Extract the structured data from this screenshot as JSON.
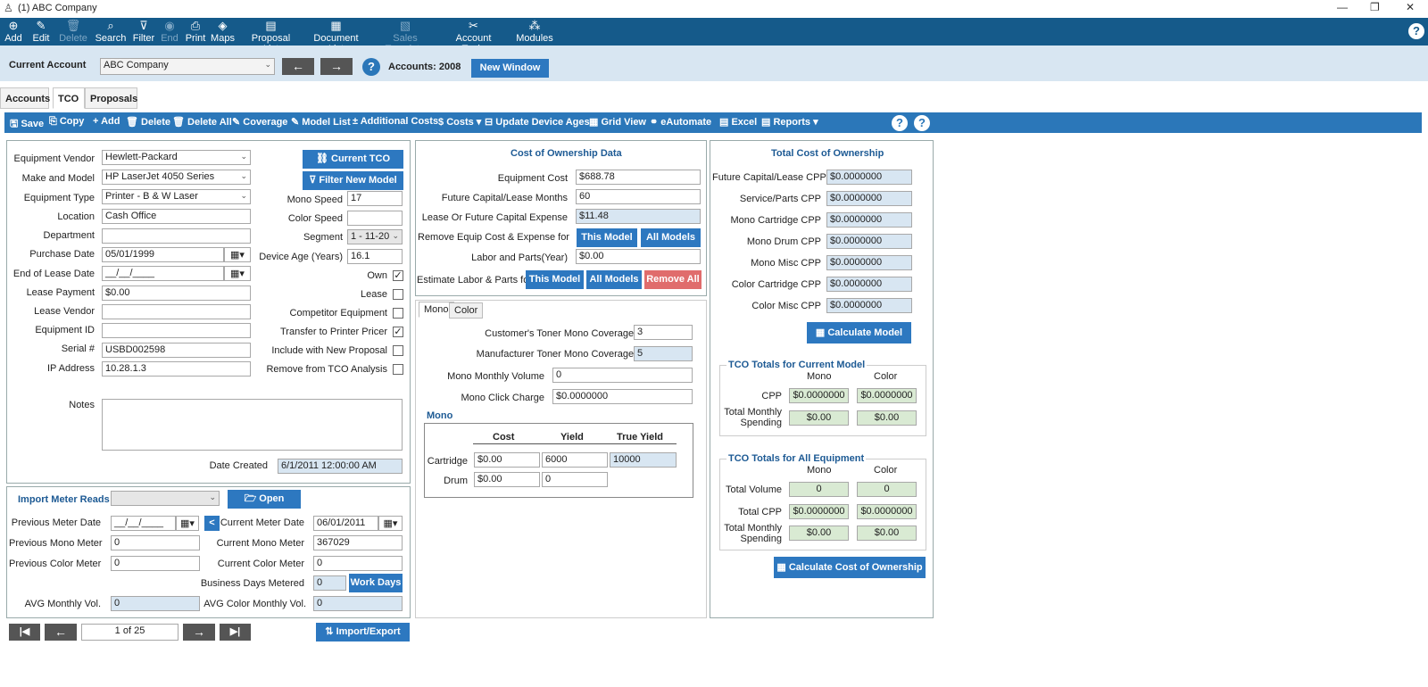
{
  "window": {
    "title": "(1) ABC Company",
    "minimize": "—",
    "restore": "❐",
    "close": "✕"
  },
  "toolbar": [
    {
      "label": "Add",
      "icon": "⊕",
      "disabled": false
    },
    {
      "label": "Edit",
      "icon": "✎",
      "disabled": false
    },
    {
      "label": "Delete",
      "icon": "🗑",
      "disabled": true
    },
    {
      "label": "Search",
      "icon": "⌕",
      "disabled": false
    },
    {
      "label": "Filter",
      "icon": "⊽",
      "disabled": false
    },
    {
      "label": "End",
      "icon": "◉",
      "disabled": true
    },
    {
      "label": "Print",
      "icon": "⎙",
      "disabled": false
    },
    {
      "label": "Maps",
      "icon": "◈",
      "disabled": false
    },
    {
      "label": "Proposal List",
      "icon": "▤",
      "disabled": false
    },
    {
      "label": "Document List",
      "icon": "▦",
      "disabled": false
    },
    {
      "label": "Sales Template",
      "icon": "▧",
      "disabled": true
    },
    {
      "label": "Account Tools",
      "icon": "✂",
      "disabled": false
    },
    {
      "label": "Modules",
      "icon": "⁂",
      "disabled": false
    }
  ],
  "help": "?",
  "account": {
    "label": "Current Account",
    "value": "ABC Company",
    "accounts": "Accounts: 2008",
    "new_window": "New Window",
    "prev": "←",
    "next": "→"
  },
  "tabs": [
    "Accounts",
    "TCO",
    "Proposals"
  ],
  "actions": [
    "Save",
    "Copy",
    "Add",
    "Delete",
    "Delete All",
    "Coverage",
    "Model List",
    "Additional Costs",
    "Costs",
    "Update Device Ages",
    "Grid View",
    "eAutomate",
    "Excel",
    "Reports"
  ],
  "equipment": {
    "vendor_label": "Equipment Vendor",
    "vendor": "Hewlett-Packard",
    "model_label": "Make and Model",
    "model": "HP LaserJet 4050 Series",
    "type_label": "Equipment Type",
    "type": "Printer - B & W Laser",
    "location_label": "Location",
    "location": "Cash Office",
    "department_label": "Department",
    "department": "",
    "purchase_label": "Purchase Date",
    "purchase": "05/01/1999",
    "lease_end_label": "End of Lease Date",
    "lease_end": "__/__/____",
    "lease_payment_label": "Lease Payment",
    "lease_payment": "$0.00",
    "lease_vendor_label": "Lease Vendor",
    "lease_vendor": "",
    "equip_id_label": "Equipment ID",
    "equip_id": "",
    "serial_label": "Serial #",
    "serial": "USBD002598",
    "ip_label": "IP Address",
    "ip": "10.28.1.3",
    "current_tco": "Current TCO",
    "filter_new": "Filter New Model",
    "mono_speed_label": "Mono Speed",
    "mono_speed": "17",
    "color_speed_label": "Color Speed",
    "color_speed": "",
    "segment_label": "Segment",
    "segment": "1 - 11-20",
    "age_label": "Device Age (Years)",
    "age": "16.1",
    "own_label": "Own",
    "lease_label": "Lease",
    "competitor_label": "Competitor Equipment",
    "transfer_label": "Transfer to Printer Pricer",
    "include_label": "Include with New Proposal",
    "remove_label": "Remove from TCO Analysis",
    "notes_label": "Notes",
    "notes": "",
    "created_label": "Date Created",
    "created": "6/1/2011 12:00:00 AM"
  },
  "meter": {
    "import_label": "Import Meter Reads",
    "import_value": "",
    "open": "Open",
    "prev_date_label": "Previous Meter Date",
    "prev_date": "__/__/____",
    "cur_date_label": "Current Meter Date",
    "cur_date": "06/01/2011",
    "prev_mono_label": "Previous Mono Meter",
    "prev_mono": "0",
    "cur_mono_label": "Current Mono Meter",
    "cur_mono": "367029",
    "prev_color_label": "Previous Color Meter",
    "prev_color": "0",
    "cur_color_label": "Current Color Meter",
    "cur_color": "0",
    "bdays_label": "Business Days Metered",
    "bdays": "0",
    "work_days": "Work Days",
    "avg_mono_label": "AVG Monthly Vol.",
    "avg_mono": "0",
    "avg_color_label": "AVG Color Monthly Vol.",
    "avg_color": "0",
    "arrow": "<"
  },
  "nav": {
    "first": "|◀",
    "prev": "←",
    "page": "1 of 25",
    "next": "→",
    "last": "▶|",
    "import_export": "Import/Export"
  },
  "cod": {
    "title": "Cost of Ownership Data",
    "equip_cost_label": "Equipment Cost",
    "equip_cost": "$688.78",
    "months_label": "Future Capital/Lease Months",
    "months": "60",
    "expense_label": "Lease Or Future Capital Expense",
    "expense": "$11.48",
    "remove_label": "Remove Equip Cost & Expense for",
    "this_model": "This Model",
    "all_models": "All Models",
    "labor_label": "Labor and Parts(Year)",
    "labor": "$0.00",
    "estimate_label": "Estimate Labor & Parts for",
    "remove_all": "Remove All"
  },
  "mono": {
    "tabs": [
      "Mono",
      "Color"
    ],
    "cust_label": "Customer's Toner Mono Coverage %",
    "cust": "3",
    "mfr_label": "Manufacturer Toner Mono Coverage %",
    "mfr": "5",
    "vol_label": "Mono Monthly Volume",
    "vol": "0",
    "click_label": "Mono Click Charge",
    "click": "$0.0000000",
    "section": "Mono",
    "cols": [
      "Cost",
      "Yield",
      "True Yield"
    ],
    "cart_label": "Cartridge",
    "cart_cost": "$0.00",
    "cart_yield": "6000",
    "cart_true": "10000",
    "drum_label": "Drum",
    "drum_cost": "$0.00",
    "drum_yield": "0"
  },
  "total": {
    "title": "Total Cost of Ownership",
    "rows": [
      {
        "label": "Future Capital/Lease CPP",
        "value": "$0.0000000"
      },
      {
        "label": "Service/Parts CPP",
        "value": "$0.0000000"
      },
      {
        "label": "Mono Cartridge CPP",
        "value": "$0.0000000"
      },
      {
        "label": "Mono Drum CPP",
        "value": "$0.0000000"
      },
      {
        "label": "Mono Misc CPP",
        "value": "$0.0000000"
      },
      {
        "label": "Color Cartridge CPP",
        "value": "$0.0000000"
      },
      {
        "label": "Color Misc CPP",
        "value": "$0.0000000"
      }
    ],
    "calc_model": "Calculate Model",
    "cur_title": "TCO Totals for Current Model",
    "mono": "Mono",
    "color": "Color",
    "cpp_label": "CPP",
    "cpp_mono": "$0.0000000",
    "cpp_color": "$0.0000000",
    "spend_label": "Total Monthly Spending",
    "spend_mono": "$0.00",
    "spend_color": "$0.00",
    "all_title": "TCO Totals for All Equipment",
    "vol_label": "Total Volume",
    "vol_mono": "0",
    "vol_color": "0",
    "tcpp_label": "Total CPP",
    "tcpp_mono": "$0.0000000",
    "tcpp_color": "$0.0000000",
    "tspend_label": "Total Monthly Spending",
    "tspend_mono": "$0.00",
    "tspend_color": "$0.00",
    "calc_cost": "Calculate Cost of Ownership"
  }
}
